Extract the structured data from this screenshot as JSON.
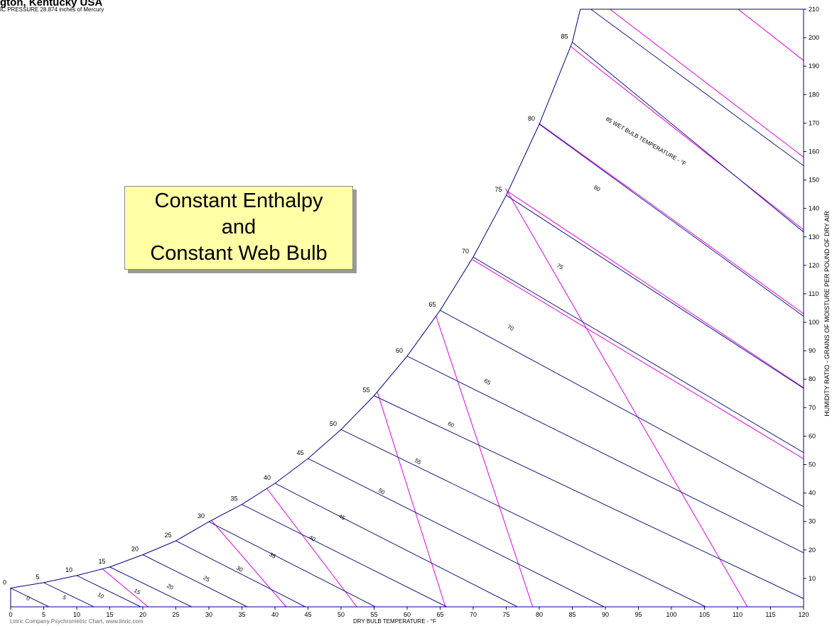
{
  "header": {
    "title": "gton, Kentucky USA",
    "subtitle": "IC PRESSURE 28.874 inches of Mercury"
  },
  "callout": {
    "line1": "Constant Enthalpy",
    "line2": "and",
    "line3": "Constant Web Bulb"
  },
  "footer": {
    "credit": "Linric Company Psychrometric Chart, www.linric.com"
  },
  "colors": {
    "wet_bulb_line": "#1a1a80",
    "enthalpy_line": "#e600e6",
    "axis": "#000080",
    "callout_fill": "#ffffa6"
  },
  "chart_data": {
    "type": "line",
    "xlabel": "DRY BULB TEMPERATURE - °F",
    "ylabel": "HUMIDITY RATIO - GRAINS OF MOISTURE PER POUND OF DRY AIR",
    "xlim": [
      0,
      120
    ],
    "ylim": [
      0,
      210
    ],
    "x_ticks": [
      0,
      5,
      10,
      15,
      20,
      25,
      30,
      35,
      40,
      45,
      50,
      55,
      60,
      65,
      70,
      75,
      80,
      85,
      90,
      95,
      100,
      105,
      110,
      115,
      120
    ],
    "y_ticks": [
      10,
      20,
      30,
      40,
      50,
      60,
      70,
      80,
      90,
      100,
      110,
      120,
      130,
      140,
      150,
      160,
      170,
      180,
      190,
      200,
      210
    ],
    "saturation_curve": [
      [
        0,
        6.6
      ],
      [
        5,
        8.5
      ],
      [
        10,
        11.0
      ],
      [
        15,
        14.0
      ],
      [
        20,
        18.3
      ],
      [
        25,
        23.2
      ],
      [
        30,
        29.9
      ],
      [
        35,
        36.0
      ],
      [
        40,
        43.4
      ],
      [
        45,
        52.1
      ],
      [
        50,
        62.3
      ],
      [
        55,
        74.2
      ],
      [
        60,
        88.1
      ],
      [
        65,
        104.2
      ],
      [
        70,
        122.9
      ],
      [
        75,
        144.6
      ],
      [
        80,
        169.6
      ],
      [
        85,
        198.4
      ],
      [
        86.2,
        210
      ]
    ],
    "wet_bulb_lines": [
      {
        "label": "0",
        "start": [
          0,
          6.6
        ],
        "end": [
          5.8,
          0
        ]
      },
      {
        "label": "5",
        "start": [
          5,
          8.5
        ],
        "end": [
          12.6,
          0
        ]
      },
      {
        "label": "10",
        "start": [
          10,
          11.0
        ],
        "end": [
          19.7,
          0
        ]
      },
      {
        "label": "15",
        "start": [
          15,
          14.0
        ],
        "end": [
          27.4,
          0
        ]
      },
      {
        "label": "20",
        "start": [
          20,
          18.3
        ],
        "end": [
          35.8,
          0
        ]
      },
      {
        "label": "25",
        "start": [
          25,
          23.2
        ],
        "end": [
          44.6,
          0
        ]
      },
      {
        "label": "30",
        "start": [
          30,
          29.9
        ],
        "end": [
          55.2,
          0
        ]
      },
      {
        "label": "35",
        "start": [
          35,
          36.0
        ],
        "end": [
          66.0,
          0
        ]
      },
      {
        "label": "40",
        "start": [
          40,
          43.4
        ],
        "end": [
          76.7,
          0
        ]
      },
      {
        "label": "45",
        "start": [
          45,
          52.1
        ],
        "end": [
          89.8,
          0
        ]
      },
      {
        "label": "50",
        "start": [
          50,
          62.3
        ],
        "end": [
          105.2,
          0
        ]
      },
      {
        "label": "55",
        "start": [
          55,
          74.2
        ],
        "end": [
          120.0,
          2.9
        ]
      },
      {
        "label": "60",
        "start": [
          60,
          88.1
        ],
        "end": [
          120.0,
          19.0
        ]
      },
      {
        "label": "65",
        "start": [
          65,
          104.2
        ],
        "end": [
          120.0,
          35.2
        ]
      },
      {
        "label": "70",
        "start": [
          70,
          122.9
        ],
        "end": [
          120.0,
          54.2
        ]
      },
      {
        "label": "75",
        "start": [
          75,
          144.6
        ],
        "end": [
          120.0,
          76.8
        ]
      },
      {
        "label": "80",
        "start": [
          80,
          169.6
        ],
        "end": [
          120.0,
          102.1
        ]
      },
      {
        "label": "85",
        "start": [
          85,
          198.4
        ],
        "end": [
          120.0,
          131.7
        ]
      },
      {
        "label": "",
        "start": [
          87.8,
          210
        ],
        "end": [
          120.0,
          155.0
        ]
      }
    ],
    "enthalpy_lines": [
      {
        "start": [
          13.9,
          13.3
        ],
        "end": [
          20.8,
          0
        ]
      },
      {
        "start": [
          30.4,
          30.3
        ],
        "end": [
          41.7,
          0
        ]
      },
      {
        "start": [
          38.8,
          41.5
        ],
        "end": [
          52.4,
          0
        ]
      },
      {
        "start": [
          55.5,
          75.4
        ],
        "end": [
          65.8,
          0
        ]
      },
      {
        "start": [
          64.4,
          102.0
        ],
        "end": [
          79.0,
          0
        ]
      },
      {
        "start": [
          74.9,
          147.0
        ],
        "end": [
          111.5,
          0
        ]
      },
      {
        "start": [
          69.9,
          122.0
        ],
        "end": [
          120.0,
          52.0
        ]
      },
      {
        "start": [
          75.2,
          146.0
        ],
        "end": [
          120.0,
          77.0
        ]
      },
      {
        "start": [
          79.9,
          170.0
        ],
        "end": [
          120.0,
          103.0
        ]
      },
      {
        "start": [
          84.7,
          197.0
        ],
        "end": [
          120.0,
          132.5
        ]
      },
      {
        "start": [
          90.7,
          210
        ],
        "end": [
          120.0,
          158.0
        ]
      },
      {
        "start": [
          110.1,
          210
        ],
        "end": [
          120.0,
          192.0
        ]
      }
    ],
    "annotations": [
      {
        "text": "85 WET BULB TEMPERATURE - °F",
        "at": [
          96.0,
          163.0
        ]
      },
      {
        "text": "80",
        "at": [
          88.6,
          146.5
        ]
      },
      {
        "text": "75",
        "at": [
          83.0,
          119.0
        ]
      },
      {
        "text": "70",
        "at": [
          75.5,
          97.5
        ]
      },
      {
        "text": "65",
        "at": [
          72.0,
          78.5
        ]
      },
      {
        "text": "60",
        "at": [
          66.5,
          63.5
        ]
      },
      {
        "text": "55",
        "at": [
          61.5,
          50.5
        ]
      },
      {
        "text": "50",
        "at": [
          56.0,
          40.0
        ]
      },
      {
        "text": "45",
        "at": [
          50.0,
          31.0
        ]
      },
      {
        "text": "40",
        "at": [
          45.5,
          23.5
        ]
      },
      {
        "text": "35",
        "at": [
          39.5,
          17.5
        ]
      },
      {
        "text": "30",
        "at": [
          34.5,
          12.8
        ]
      },
      {
        "text": "25",
        "at": [
          29.5,
          9.3
        ]
      },
      {
        "text": "20",
        "at": [
          24.0,
          6.5
        ]
      },
      {
        "text": "15",
        "at": [
          19.0,
          4.8
        ]
      },
      {
        "text": "10",
        "at": [
          13.5,
          3.4
        ]
      },
      {
        "text": "5",
        "at": [
          8.0,
          2.7
        ]
      },
      {
        "text": "0",
        "at": [
          2.5,
          2.4
        ]
      }
    ]
  }
}
